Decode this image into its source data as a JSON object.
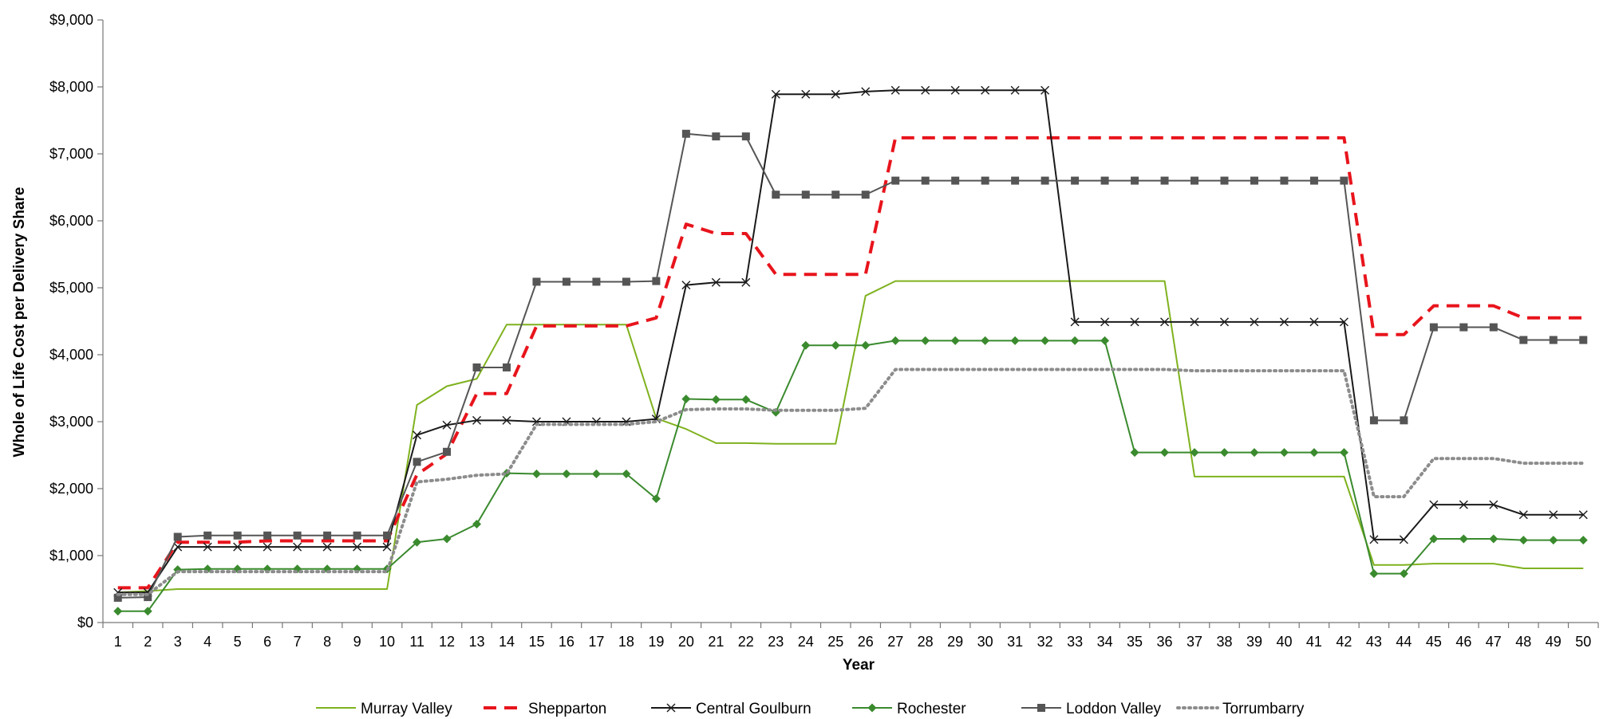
{
  "chart_data": {
    "type": "line",
    "title": "",
    "xlabel": "Year",
    "ylabel": "Whole of Life Cost per Delivery Share",
    "ylim": [
      0,
      9000
    ],
    "y_ticks": [
      0,
      1000,
      2000,
      3000,
      4000,
      5000,
      6000,
      7000,
      8000,
      9000
    ],
    "y_tick_labels": [
      "$0",
      "$1,000",
      "$2,000",
      "$3,000",
      "$4,000",
      "$5,000",
      "$6,000",
      "$7,000",
      "$8,000",
      "$9,000"
    ],
    "x": [
      1,
      2,
      3,
      4,
      5,
      6,
      7,
      8,
      9,
      10,
      11,
      12,
      13,
      14,
      15,
      16,
      17,
      18,
      19,
      20,
      21,
      22,
      23,
      24,
      25,
      26,
      27,
      28,
      29,
      30,
      31,
      32,
      33,
      34,
      35,
      36,
      37,
      38,
      39,
      40,
      41,
      42,
      43,
      44,
      45,
      46,
      47,
      48,
      49,
      50
    ],
    "grid": false,
    "legend_position": "bottom",
    "series": [
      {
        "name": "Murray Valley",
        "color": "#7fb21e",
        "line": "solid",
        "marker": "none",
        "values": [
          450,
          470,
          500,
          500,
          500,
          500,
          500,
          500,
          500,
          500,
          3250,
          3530,
          3640,
          4450,
          4450,
          4450,
          4450,
          4450,
          3050,
          2890,
          2680,
          2680,
          2670,
          2670,
          2670,
          4880,
          5100,
          5100,
          5100,
          5100,
          5100,
          5100,
          5100,
          5100,
          5100,
          5100,
          2180,
          2180,
          2180,
          2180,
          2180,
          2180,
          860,
          860,
          880,
          880,
          880,
          810,
          810,
          810
        ]
      },
      {
        "name": "Shepparton",
        "color": "#e8141c",
        "line": "dashed",
        "marker": "none",
        "values": [
          520,
          520,
          1200,
          1200,
          1200,
          1220,
          1220,
          1220,
          1220,
          1220,
          2210,
          2520,
          3420,
          3420,
          4430,
          4430,
          4430,
          4430,
          4550,
          5950,
          5810,
          5810,
          5200,
          5200,
          5200,
          5200,
          7240,
          7240,
          7240,
          7240,
          7240,
          7240,
          7240,
          7240,
          7240,
          7240,
          7240,
          7240,
          7240,
          7240,
          7240,
          7240,
          4300,
          4300,
          4730,
          4730,
          4730,
          4550,
          4550,
          4550
        ]
      },
      {
        "name": "Central Goulburn",
        "color": "#1a1a1a",
        "line": "solid",
        "marker": "x",
        "values": [
          450,
          450,
          1130,
          1130,
          1130,
          1130,
          1130,
          1130,
          1130,
          1130,
          2800,
          2950,
          3020,
          3020,
          3000,
          3000,
          3000,
          3000,
          3040,
          5040,
          5080,
          5080,
          7890,
          7890,
          7890,
          7930,
          7950,
          7950,
          7950,
          7950,
          7950,
          7950,
          4490,
          4490,
          4490,
          4490,
          4490,
          4490,
          4490,
          4490,
          4490,
          4490,
          1240,
          1240,
          1760,
          1760,
          1760,
          1610,
          1610,
          1610
        ]
      },
      {
        "name": "Rochester",
        "color": "#3a8a2e",
        "line": "solid",
        "marker": "diamond",
        "values": [
          170,
          170,
          790,
          800,
          800,
          800,
          800,
          800,
          800,
          800,
          1200,
          1250,
          1470,
          2230,
          2220,
          2220,
          2220,
          2220,
          1850,
          3340,
          3330,
          3330,
          3140,
          4140,
          4140,
          4140,
          4210,
          4210,
          4210,
          4210,
          4210,
          4210,
          4210,
          4210,
          2540,
          2540,
          2540,
          2540,
          2540,
          2540,
          2540,
          2540,
          730,
          730,
          1250,
          1250,
          1250,
          1230,
          1230,
          1230
        ]
      },
      {
        "name": "Loddon Valley",
        "color": "#555555",
        "line": "solid",
        "marker": "square",
        "values": [
          370,
          380,
          1280,
          1300,
          1300,
          1300,
          1300,
          1300,
          1300,
          1300,
          2400,
          2550,
          3810,
          3810,
          5090,
          5090,
          5090,
          5090,
          5100,
          7300,
          7260,
          7260,
          6390,
          6390,
          6390,
          6390,
          6600,
          6600,
          6600,
          6600,
          6600,
          6600,
          6600,
          6600,
          6600,
          6600,
          6600,
          6600,
          6600,
          6600,
          6600,
          6600,
          3020,
          3020,
          4410,
          4410,
          4410,
          4220,
          4220,
          4220
        ]
      },
      {
        "name": "Torrumbarry",
        "color": "#8c8c8c",
        "line": "dotted",
        "marker": "none",
        "values": [
          420,
          420,
          760,
          760,
          760,
          760,
          760,
          760,
          760,
          760,
          2100,
          2140,
          2200,
          2220,
          2960,
          2960,
          2960,
          2960,
          3000,
          3180,
          3190,
          3190,
          3170,
          3170,
          3170,
          3200,
          3780,
          3780,
          3780,
          3780,
          3780,
          3780,
          3780,
          3780,
          3780,
          3780,
          3760,
          3760,
          3760,
          3760,
          3760,
          3760,
          1880,
          1880,
          2450,
          2450,
          2450,
          2380,
          2380,
          2380
        ]
      }
    ]
  }
}
